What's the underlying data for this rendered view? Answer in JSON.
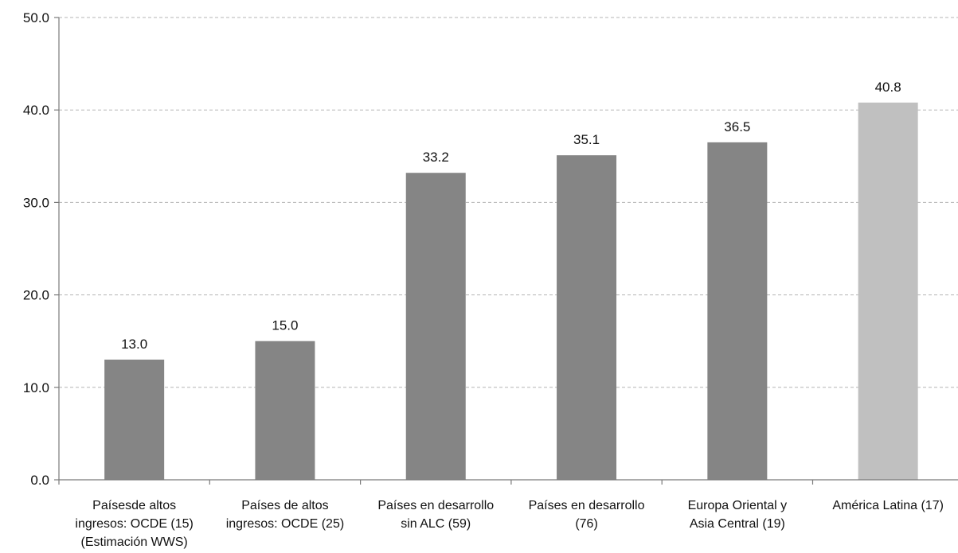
{
  "chart_data": {
    "type": "bar",
    "categories": [
      [
        "Paísesde altos",
        "ingresos: OCDE (15)",
        "(Estimación  WWS)"
      ],
      [
        "Países de altos",
        "ingresos: OCDE (25)"
      ],
      [
        "Países en desarrollo",
        "sin ALC (59)"
      ],
      [
        "Países en desarrollo",
        "(76)"
      ],
      [
        "Europa Oriental y",
        "Asia Central (19)"
      ],
      [
        "América Latina (17)"
      ]
    ],
    "values": [
      13.0,
      15.0,
      33.2,
      35.1,
      36.5,
      40.8
    ],
    "data_labels": [
      "13.0",
      "15.0",
      "33.2",
      "35.1",
      "36.5",
      "40.8"
    ],
    "bar_colors": [
      "#858585",
      "#858585",
      "#858585",
      "#858585",
      "#858585",
      "#c0c0c0"
    ],
    "ylim": [
      0,
      50
    ],
    "yticks": [
      0,
      10,
      20,
      30,
      40,
      50
    ],
    "ytick_labels": [
      "0.0",
      "10.0",
      "20.0",
      "30.0",
      "40.0",
      "50.0"
    ],
    "grid": true,
    "title": "",
    "xlabel": "",
    "ylabel": ""
  }
}
